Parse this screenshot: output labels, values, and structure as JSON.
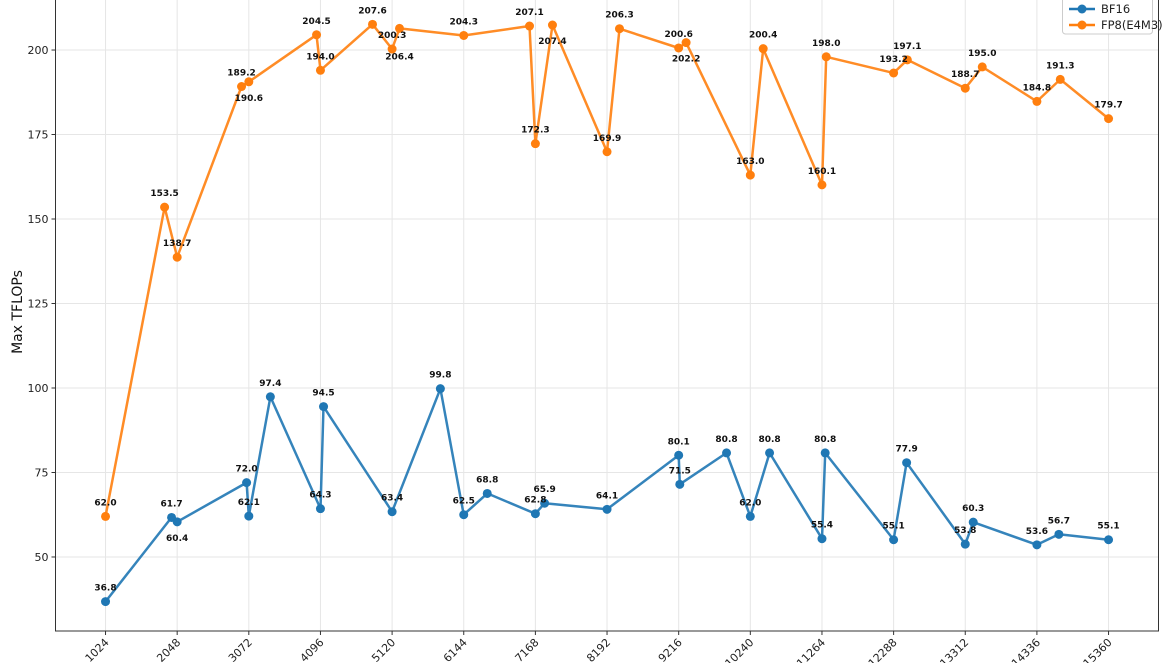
{
  "chart_data": {
    "type": "line",
    "title": "",
    "xlabel": "",
    "ylabel": "Max TFLOPs",
    "xlim": [
      309,
      16074
    ],
    "ylim": [
      28.1,
      214.8
    ],
    "grid": true,
    "legend_position": "top-right",
    "xticks": [
      1024,
      2048,
      3072,
      4096,
      5120,
      6144,
      7168,
      8192,
      9216,
      10240,
      11264,
      12288,
      13312,
      14336,
      15360
    ],
    "xtick_labels": [
      "1024",
      "2048",
      "3072",
      "4096",
      "5120",
      "6144",
      "7168",
      "8192",
      "9216",
      "10240",
      "11264",
      "12288",
      "13312",
      "14336",
      "15360"
    ],
    "yticks": [
      50,
      75,
      100,
      125,
      150,
      175,
      200
    ],
    "ytick_labels": [
      "50",
      "75",
      "100",
      "125",
      "150",
      "175",
      "200"
    ],
    "series": [
      {
        "name": "BF16",
        "color": "#1f77b4",
        "x": [
          1024,
          1968,
          2048,
          3040,
          3072,
          3380,
          4096,
          4140,
          5120,
          5810,
          6144,
          6480,
          7168,
          7300,
          8192,
          9216,
          9232,
          9900,
          10240,
          10515,
          11264,
          11310,
          12288,
          12474,
          13312,
          13426,
          14336,
          14650,
          15360
        ],
        "y": [
          36.8,
          61.7,
          60.4,
          72.0,
          62.1,
          97.4,
          64.3,
          94.5,
          63.4,
          99.8,
          62.5,
          68.8,
          62.8,
          65.9,
          64.1,
          80.1,
          71.5,
          80.8,
          62.0,
          80.8,
          55.4,
          80.8,
          55.1,
          77.9,
          53.8,
          60.3,
          53.6,
          56.7,
          55.1
        ],
        "labels": [
          "36.8",
          "61.7",
          "60.4",
          "72.0",
          "62.1",
          "97.4",
          "64.3",
          "94.5",
          "63.4",
          "99.8",
          "62.5",
          "68.8",
          "62.8",
          "65.9",
          "64.1",
          "80.1",
          "71.5",
          "80.8",
          "62.0",
          "80.8",
          "55.4",
          "80.8",
          "55.1",
          "77.9",
          "53.8",
          "60.3",
          "53.6",
          "56.7",
          "55.1"
        ]
      },
      {
        "name": "FP8(E4M3)",
        "color": "#ff7f0e",
        "x": [
          1024,
          1868,
          2048,
          2968,
          3072,
          4040,
          4096,
          4840,
          5120,
          5226,
          6144,
          7084,
          7168,
          7412,
          8192,
          8370,
          9216,
          9322,
          10240,
          10424,
          11264,
          11325,
          12288,
          12484,
          13312,
          13555,
          14336,
          14670,
          15360
        ],
        "y": [
          62.0,
          153.5,
          138.7,
          189.2,
          190.6,
          204.5,
          194.0,
          207.6,
          200.3,
          206.4,
          204.3,
          207.1,
          172.3,
          207.4,
          169.9,
          206.3,
          200.6,
          202.2,
          163.0,
          200.4,
          160.1,
          198.0,
          193.2,
          197.1,
          188.7,
          195.0,
          184.8,
          191.3,
          179.7
        ],
        "labels": [
          "62.0",
          "153.5",
          "138.7",
          "189.2",
          "190.6",
          "204.5",
          "194.0",
          "207.6",
          "200.3",
          "206.4",
          "204.3",
          "207.1",
          "172.3",
          "207.4",
          "169.9",
          "206.3",
          "200.6",
          "202.2",
          "163.0",
          "200.4",
          "160.1",
          "198.0",
          "193.2",
          "197.1",
          "188.7",
          "195.0",
          "184.8",
          "191.3",
          "179.7"
        ]
      }
    ]
  }
}
